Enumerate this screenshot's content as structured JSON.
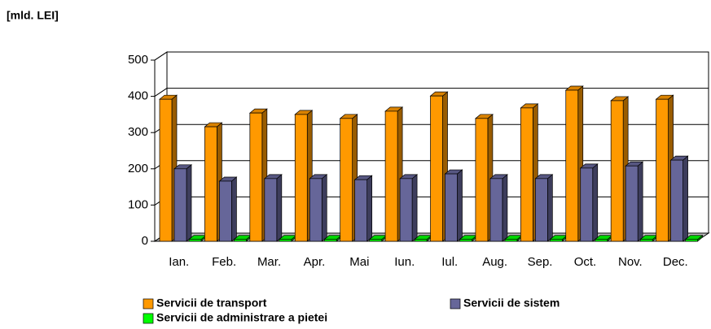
{
  "chart_data": {
    "type": "bar3d",
    "y_axis_label": "[mld. LEI]",
    "categories": [
      "Ian.",
      "Feb.",
      "Mar.",
      "Apr.",
      "Mai",
      "Iun.",
      "Iul.",
      "Aug.",
      "Sep.",
      "Oct.",
      "Nov.",
      "Dec."
    ],
    "series": [
      {
        "name": "Servicii de transport",
        "color": "#ff9900",
        "values": [
          392,
          316,
          354,
          350,
          339,
          359,
          401,
          339,
          368,
          417,
          388,
          392
        ]
      },
      {
        "name": "Servicii de sistem",
        "color": "#666699",
        "values": [
          200,
          166,
          173,
          173,
          170,
          173,
          186,
          173,
          173,
          202,
          208,
          224
        ]
      },
      {
        "name": "Servicii de administrare a pietei",
        "color": "#00ff00",
        "values": [
          5,
          5,
          5,
          5,
          5,
          5,
          5,
          5,
          5,
          5,
          5,
          5
        ]
      }
    ],
    "ylim": [
      0,
      500
    ],
    "yticks": [
      0,
      100,
      200,
      300,
      400,
      500
    ],
    "grid": true
  }
}
